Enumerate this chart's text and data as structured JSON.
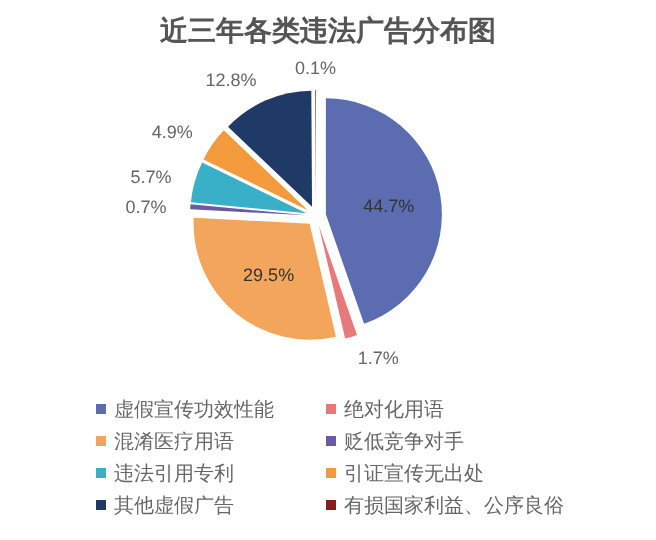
{
  "chart_data": {
    "type": "pie",
    "title": "近三年各类违法广告分布图",
    "categories": [
      "虚假宣传功效性能",
      "绝对化用语",
      "混淆医疗用语",
      "贬低竞争对手",
      "违法引用专利",
      "引证宣传无出处",
      "其他虚假广告",
      "有损国家利益、公序良俗"
    ],
    "values": [
      44.7,
      1.7,
      29.5,
      0.7,
      5.7,
      4.9,
      12.8,
      0.1
    ],
    "value_labels": [
      "44.7%",
      "1.7%",
      "29.5%",
      "0.7%",
      "5.7%",
      "4.9%",
      "12.8%",
      "0.1%"
    ],
    "colors": [
      "#5b6db0",
      "#e8797a",
      "#f4a55c",
      "#6a5aa6",
      "#3aafc8",
      "#f29a3c",
      "#1f3a66",
      "#8a1c1c"
    ],
    "legend": "bottom"
  }
}
